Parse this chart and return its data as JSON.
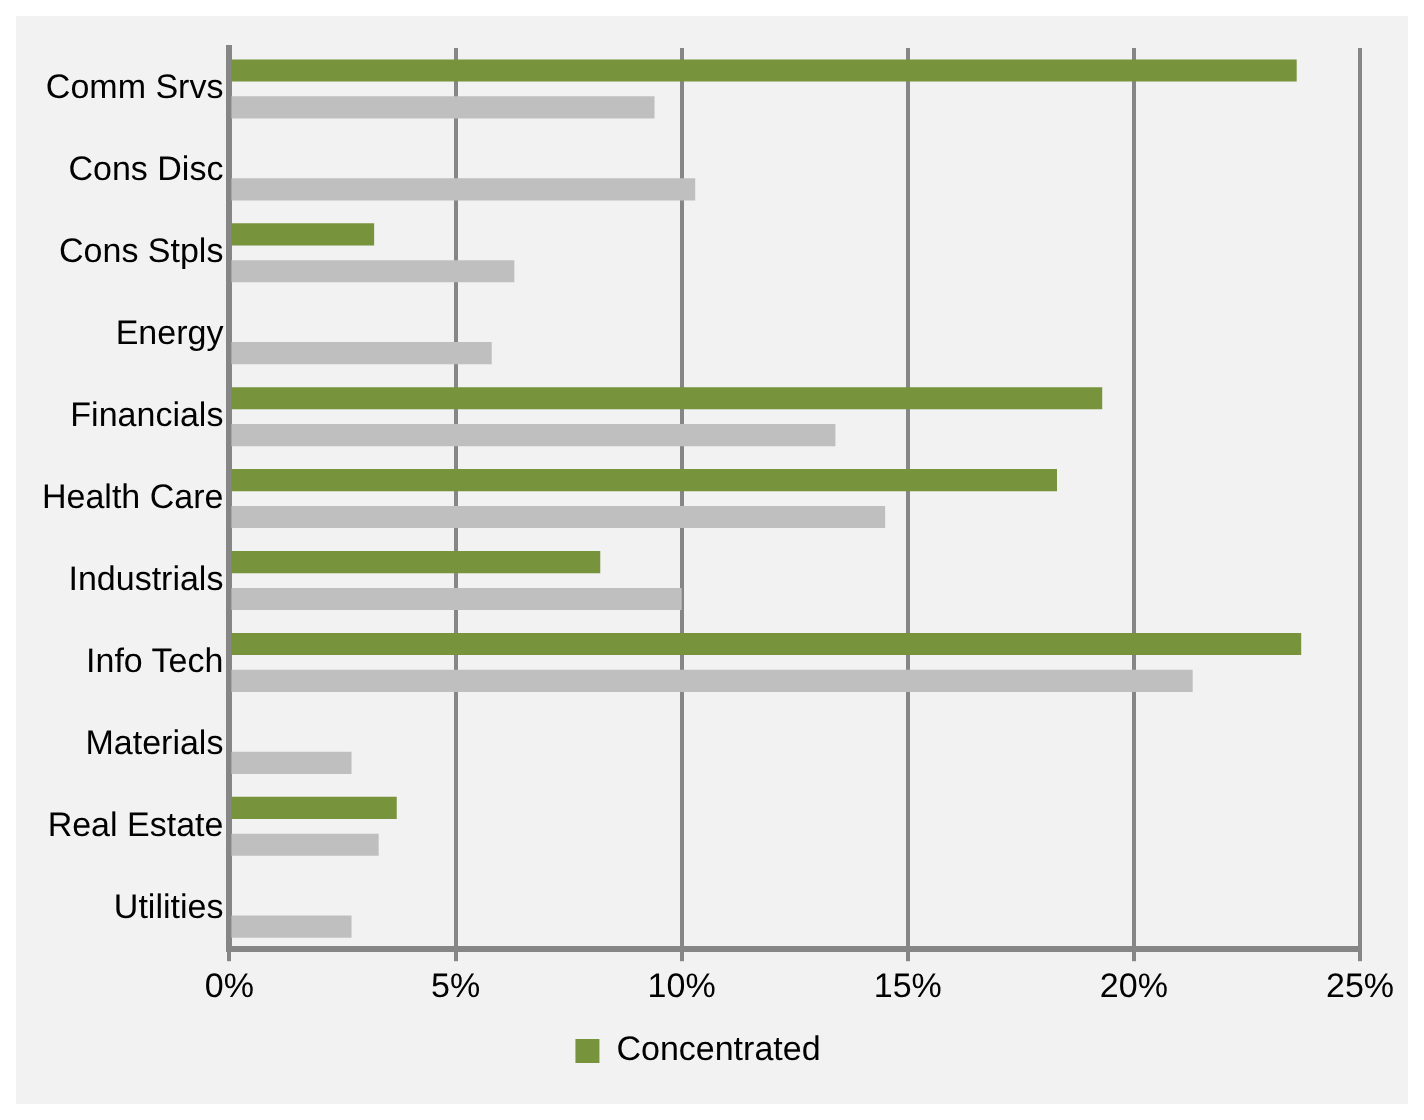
{
  "chart_data": {
    "type": "bar",
    "orientation": "horizontal",
    "categories": [
      "Comm Srvs",
      "Cons Disc",
      "Cons Stpls",
      "Energy",
      "Financials",
      "Health Care",
      "Industrials",
      "Info Tech",
      "Materials",
      "Real Estate",
      "Utilities"
    ],
    "series": [
      {
        "name": "Concentrated",
        "color": "#77933c",
        "values": [
          23.6,
          null,
          3.2,
          null,
          19.3,
          18.3,
          8.2,
          23.7,
          null,
          3.7,
          null
        ]
      },
      {
        "color": "#bfbfbf",
        "values": [
          9.4,
          10.3,
          6.3,
          5.8,
          13.4,
          14.5,
          10.0,
          21.3,
          2.7,
          3.3,
          2.7
        ]
      }
    ],
    "xlim": [
      0,
      25
    ],
    "xticks": [
      {
        "value": 0,
        "label": "0%"
      },
      {
        "value": 5,
        "label": "5%"
      },
      {
        "value": 10,
        "label": "10%"
      },
      {
        "value": 15,
        "label": "15%"
      },
      {
        "value": 20,
        "label": "20%"
      },
      {
        "value": 25,
        "label": "25%"
      }
    ],
    "grid": "x",
    "legend": "bottom"
  }
}
